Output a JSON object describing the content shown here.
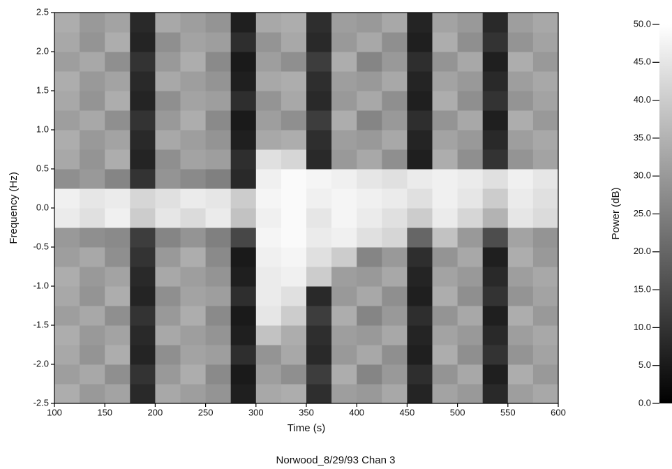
{
  "chart_data": {
    "type": "heatmap",
    "title": "Norwood_8/29/93 Chan 3",
    "xlabel": "Time (s)",
    "ylabel": "Frequency (Hz)",
    "x": [
      112.5,
      137.5,
      162.5,
      187.5,
      212.5,
      237.5,
      262.5,
      287.5,
      312.5,
      337.5,
      362.5,
      387.5,
      412.5,
      437.5,
      462.5,
      487.5,
      512.5,
      537.5,
      562.5,
      587.5
    ],
    "y": [
      -2.375,
      -2.125,
      -1.875,
      -1.625,
      -1.375,
      -1.125,
      -0.875,
      -0.625,
      -0.375,
      -0.125,
      0.125,
      0.375,
      0.625,
      0.875,
      1.125,
      1.375,
      1.625,
      1.875,
      2.125,
      2.375
    ],
    "z": [
      [
        34,
        30,
        32,
        8,
        33,
        31,
        29,
        6,
        33,
        34,
        9,
        31,
        30,
        33,
        7,
        32,
        30,
        8,
        31,
        33
      ],
      [
        31,
        33,
        28,
        10,
        30,
        34,
        27,
        5,
        31,
        28,
        12,
        34,
        26,
        30,
        9,
        29,
        33,
        6,
        34,
        30
      ],
      [
        33,
        29,
        34,
        7,
        28,
        32,
        31,
        9,
        29,
        33,
        8,
        30,
        33,
        28,
        6,
        34,
        28,
        10,
        29,
        32
      ],
      [
        34,
        30,
        32,
        8,
        33,
        31,
        29,
        6,
        38,
        34,
        9,
        31,
        30,
        33,
        7,
        32,
        30,
        8,
        31,
        33
      ],
      [
        31,
        33,
        28,
        10,
        30,
        34,
        27,
        5,
        45,
        40,
        12,
        34,
        26,
        30,
        9,
        29,
        33,
        6,
        34,
        30
      ],
      [
        33,
        29,
        34,
        7,
        28,
        32,
        31,
        9,
        46,
        44,
        8,
        30,
        33,
        28,
        6,
        34,
        28,
        10,
        29,
        32
      ],
      [
        34,
        30,
        32,
        8,
        33,
        31,
        29,
        6,
        46,
        47,
        40,
        31,
        30,
        33,
        7,
        32,
        30,
        8,
        31,
        33
      ],
      [
        31,
        33,
        28,
        10,
        30,
        34,
        27,
        5,
        47,
        48,
        44,
        40,
        26,
        30,
        9,
        29,
        33,
        6,
        34,
        30
      ],
      [
        30,
        28,
        27,
        12,
        26,
        29,
        25,
        14,
        48,
        49,
        46,
        47,
        44,
        42,
        20,
        38,
        30,
        15,
        32,
        29
      ],
      [
        46,
        44,
        47,
        40,
        45,
        43,
        46,
        38,
        47,
        49,
        45,
        48,
        46,
        44,
        40,
        46,
        42,
        35,
        45,
        43
      ],
      [
        47,
        45,
        46,
        42,
        44,
        46,
        45,
        40,
        48,
        49,
        47,
        48,
        47,
        46,
        44,
        47,
        45,
        40,
        46,
        44
      ],
      [
        28,
        30,
        26,
        10,
        29,
        27,
        25,
        8,
        47,
        49,
        48,
        47,
        45,
        44,
        46,
        47,
        46,
        44,
        47,
        45
      ],
      [
        33,
        29,
        34,
        7,
        28,
        32,
        31,
        9,
        44,
        42,
        8,
        30,
        33,
        28,
        6,
        34,
        28,
        10,
        29,
        32
      ],
      [
        34,
        30,
        32,
        8,
        33,
        31,
        29,
        6,
        33,
        34,
        9,
        31,
        30,
        33,
        7,
        32,
        30,
        8,
        31,
        33
      ],
      [
        31,
        33,
        28,
        10,
        30,
        34,
        27,
        5,
        31,
        28,
        12,
        34,
        26,
        30,
        9,
        29,
        33,
        6,
        34,
        30
      ],
      [
        33,
        29,
        34,
        7,
        28,
        32,
        31,
        9,
        29,
        33,
        8,
        30,
        33,
        28,
        6,
        34,
        28,
        10,
        29,
        32
      ],
      [
        34,
        30,
        32,
        8,
        33,
        31,
        29,
        6,
        33,
        34,
        9,
        31,
        30,
        33,
        7,
        32,
        30,
        8,
        31,
        33
      ],
      [
        31,
        33,
        28,
        10,
        30,
        34,
        27,
        5,
        31,
        28,
        12,
        34,
        26,
        30,
        9,
        29,
        33,
        6,
        34,
        30
      ],
      [
        33,
        29,
        34,
        7,
        28,
        32,
        31,
        9,
        29,
        33,
        8,
        30,
        33,
        28,
        6,
        34,
        28,
        10,
        29,
        32
      ],
      [
        34,
        30,
        32,
        8,
        33,
        31,
        29,
        6,
        33,
        34,
        9,
        31,
        30,
        33,
        7,
        32,
        30,
        8,
        31,
        33
      ]
    ],
    "xlim": [
      100,
      600
    ],
    "xticks": [
      100,
      150,
      200,
      250,
      300,
      350,
      400,
      450,
      500,
      550,
      600
    ],
    "ylim": [
      -2.5,
      2.5
    ],
    "yticks": [
      -2.5,
      {
        "value": -2,
        "label": "-2.0"
      },
      -1.5,
      {
        "value": -1,
        "label": "-1.0"
      },
      -0.5,
      {
        "value": 0,
        "label": "0.0"
      },
      0.5,
      {
        "value": 1,
        "label": "1.0"
      },
      1.5,
      {
        "value": 2,
        "label": "2.0"
      },
      2.5
    ],
    "colormap": [
      "#000000",
      "#ffffff"
    ],
    "colorbar": {
      "label": "Power (dB)",
      "lim": [
        0,
        50
      ],
      "ticks": [
        {
          "value": 0,
          "label": "0.0"
        },
        {
          "value": 5,
          "label": "5.0"
        },
        {
          "value": 10,
          "label": "10.0"
        },
        {
          "value": 15,
          "label": "15.0"
        },
        {
          "value": 20,
          "label": "20.0"
        },
        {
          "value": 25,
          "label": "25.0"
        },
        {
          "value": 30,
          "label": "30.0"
        },
        {
          "value": 35,
          "label": "35.0"
        },
        {
          "value": 40,
          "label": "40.0"
        },
        {
          "value": 45,
          "label": "45.0"
        },
        {
          "value": 50,
          "label": "50.0"
        }
      ]
    }
  }
}
